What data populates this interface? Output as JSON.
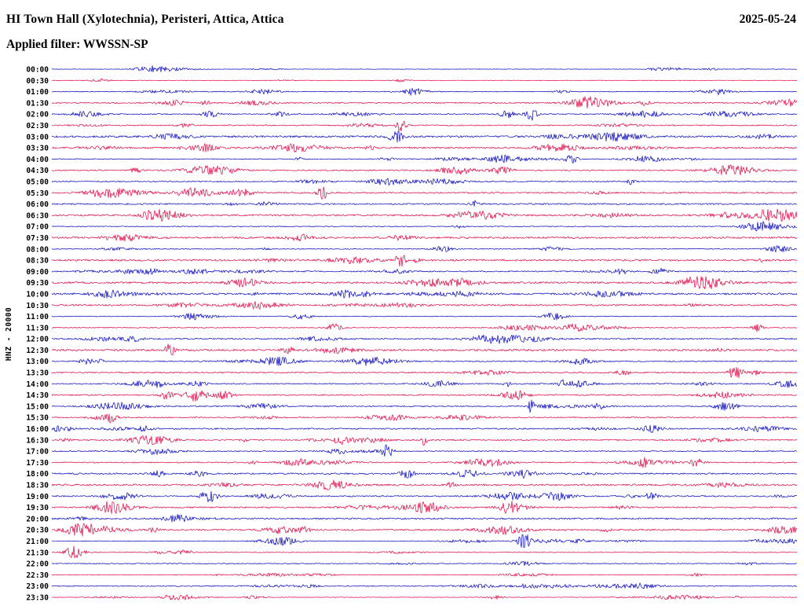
{
  "header": {
    "title": "HI Town Hall (Xylotechnia), Peristeri, Attica, Attica",
    "date": "2025-05-24",
    "filter_label": "Applied filter: WWSSN-SP"
  },
  "axis": {
    "channel_label": "HNZ - 20000"
  },
  "chart_data": {
    "type": "line",
    "subtype": "helicorder-seismogram",
    "title": "HI Town Hall (Xylotechnia), Peristeri, Attica, Attica",
    "date": "2025-05-24",
    "filter": "WWSSN-SP",
    "channel": "HNZ",
    "amplitude_scale": 20000,
    "row_duration_minutes": 30,
    "rows": [
      "00:00",
      "00:30",
      "01:00",
      "01:30",
      "02:00",
      "02:30",
      "03:00",
      "03:30",
      "04:00",
      "04:30",
      "05:00",
      "05:30",
      "06:00",
      "06:30",
      "07:00",
      "07:30",
      "08:00",
      "08:30",
      "09:00",
      "09:30",
      "10:00",
      "10:30",
      "11:00",
      "11:30",
      "12:00",
      "12:30",
      "13:00",
      "13:30",
      "14:00",
      "14:30",
      "15:00",
      "15:30",
      "16:00",
      "16:30",
      "17:00",
      "17:30",
      "18:00",
      "18:30",
      "19:00",
      "19:30",
      "20:00",
      "20:30",
      "21:00",
      "21:30",
      "22:00",
      "22:30",
      "23:00",
      "23:30"
    ],
    "trace_colors": [
      "#0000be",
      "#e00040"
    ],
    "legend_position": "none",
    "grid": false,
    "description": "Continuous 24-hour seismic waveform record; rows alternate blue/red every 30 minutes; individual sample amplitudes are sub-pixel noise with intermittent event bursts and are not individually resolvable."
  }
}
